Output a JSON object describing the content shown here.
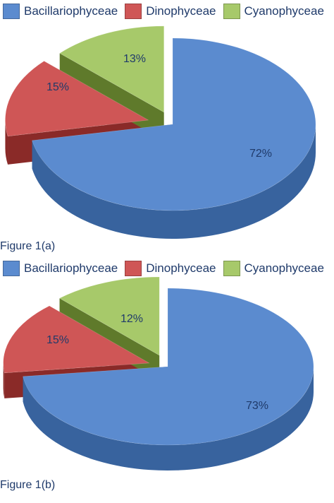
{
  "colors": {
    "Bacillariophyceae": {
      "top": "#5b8bcf",
      "side": "#38639e"
    },
    "Dinophyceae": {
      "top": "#cf5656",
      "side": "#8a2a28"
    },
    "Cyanophyceae": {
      "top": "#a7c96a",
      "side": "#5f7a2b"
    }
  },
  "chart_data": [
    {
      "type": "pie",
      "caption": "Figure 1(a)",
      "legend": [
        "Bacillariophyceae",
        "Dinophyceae",
        "Cyanophyceae"
      ],
      "slices": [
        {
          "name": "Bacillariophyceae",
          "value": 72,
          "label": "72%"
        },
        {
          "name": "Dinophyceae",
          "value": 15,
          "label": "15%"
        },
        {
          "name": "Cyanophyceae",
          "value": 13,
          "label": "13%"
        }
      ]
    },
    {
      "type": "pie",
      "caption": "Figure 1(b)",
      "legend": [
        "Bacillariophyceae",
        "Dinophyceae",
        "Cyanophyceae"
      ],
      "slices": [
        {
          "name": "Bacillariophyceae",
          "value": 73,
          "label": "73%"
        },
        {
          "name": "Dinophyceae",
          "value": 15,
          "label": "15%"
        },
        {
          "name": "Cyanophyceae",
          "value": 12,
          "label": "12%"
        }
      ]
    }
  ]
}
